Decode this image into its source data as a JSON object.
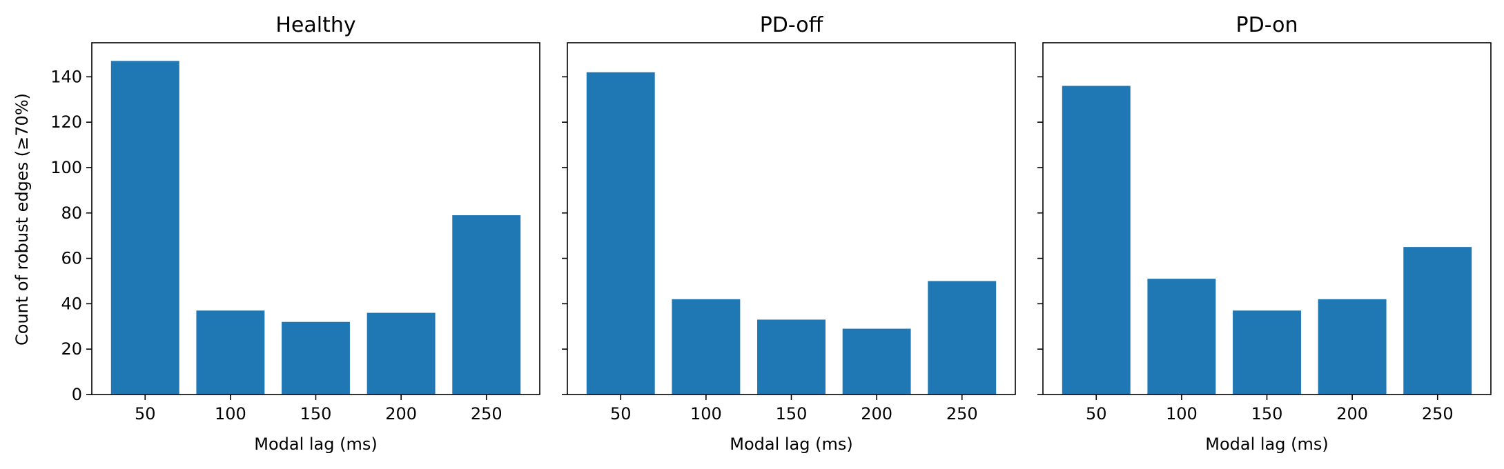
{
  "figure": {
    "ylabel": "Count of robust edges (≥70%)"
  },
  "colors": {
    "bar": "#1f77b4",
    "axis": "#000000"
  },
  "chart_data": [
    {
      "type": "bar",
      "title": "Healthy",
      "xlabel": "Modal lag (ms)",
      "ylabel": "Count of robust edges (≥70%)",
      "categories": [
        "50",
        "100",
        "150",
        "200",
        "250"
      ],
      "values": [
        147,
        37,
        32,
        36,
        79
      ],
      "ylim": [
        0,
        155
      ],
      "yticks": [
        0,
        20,
        40,
        60,
        80,
        100,
        120,
        140
      ],
      "grid": false
    },
    {
      "type": "bar",
      "title": "PD-off",
      "xlabel": "Modal lag (ms)",
      "ylabel": "",
      "categories": [
        "50",
        "100",
        "150",
        "200",
        "250"
      ],
      "values": [
        142,
        42,
        33,
        29,
        50
      ],
      "ylim": [
        0,
        155
      ],
      "yticks": [
        0,
        20,
        40,
        60,
        80,
        100,
        120,
        140
      ],
      "grid": false
    },
    {
      "type": "bar",
      "title": "PD-on",
      "xlabel": "Modal lag (ms)",
      "ylabel": "",
      "categories": [
        "50",
        "100",
        "150",
        "200",
        "250"
      ],
      "values": [
        136,
        51,
        37,
        42,
        65
      ],
      "ylim": [
        0,
        155
      ],
      "yticks": [
        0,
        20,
        40,
        60,
        80,
        100,
        120,
        140
      ],
      "grid": false
    }
  ]
}
